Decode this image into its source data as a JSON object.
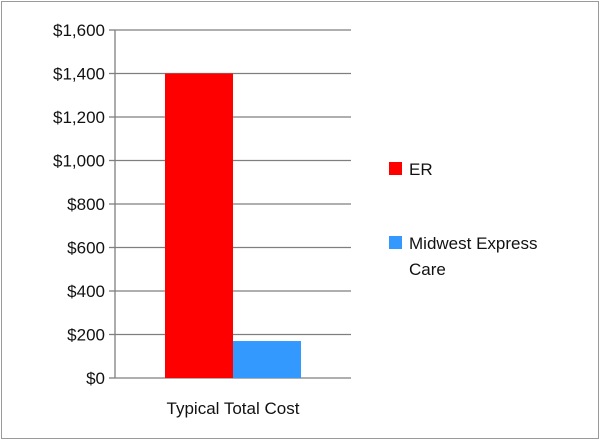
{
  "chart_data": {
    "type": "bar",
    "title": "",
    "xlabel": "",
    "ylabel": "",
    "categories": [
      "Typical Total Cost"
    ],
    "series": [
      {
        "name": "ER",
        "values": [
          1400
        ],
        "color": "#ff0000"
      },
      {
        "name": "Midwest Express Care",
        "values": [
          170
        ],
        "color": "#3399ff"
      }
    ],
    "ylim": [
      0,
      1600
    ],
    "y_ticks": [
      0,
      200,
      400,
      600,
      800,
      1000,
      1200,
      1400,
      1600
    ],
    "y_tick_labels": [
      "$0",
      "$200",
      "$400",
      "$600",
      "$800",
      "$1,000",
      "$1,200",
      "$1,400",
      "$1,600"
    ],
    "grid": true,
    "legend_position": "right"
  }
}
